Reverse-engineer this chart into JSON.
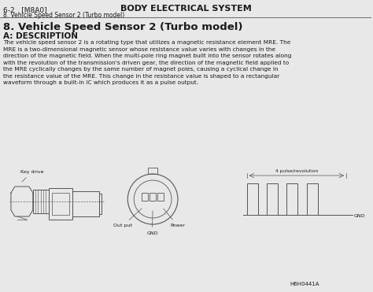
{
  "bg_color": "#e8e8e8",
  "header_left": "6-2   [M8A0]",
  "header_center": "BODY ELECTRICAL SYSTEM",
  "header_sub": "8. Vehicle Speed Sensor 2 (Turbo model)",
  "section_title": "8. Vehicle Speed Sensor 2 (Turbo model)",
  "section_sub": "A: DESCRIPTION",
  "body_text": "The vehicle speed sensor 2 is a rotating type that utilizes a magnetic resistance element MRE. The\nMRE is a two-dimensional magnetic sensor whose resistance value varies with changes in the\ndirection of the magnetic field. When the multi-pole ring magnet built into the sensor rotates along\nwith the revolution of the transmission's driven gear, the direction of the magnetic field applied to\nthe MRE cyclically changes by the same number of magnet poles, causing a cyclical change in\nthe resistance value of the MRE. This change in the resistance value is shaped to a rectangular\nwaveform through a built-in IC which produces it as a pulse output.",
  "label_key_drive": "Key drive",
  "label_out_put": "Out put",
  "label_gnd_bottom": "GND",
  "label_power": "Power",
  "label_gnd_right": "GND",
  "label_4pulse": "4 pulse/revolution",
  "label_ref": "H6H0441A",
  "text_color": "#1a1a1a",
  "line_color": "#555555",
  "diagram_color": "#888888"
}
